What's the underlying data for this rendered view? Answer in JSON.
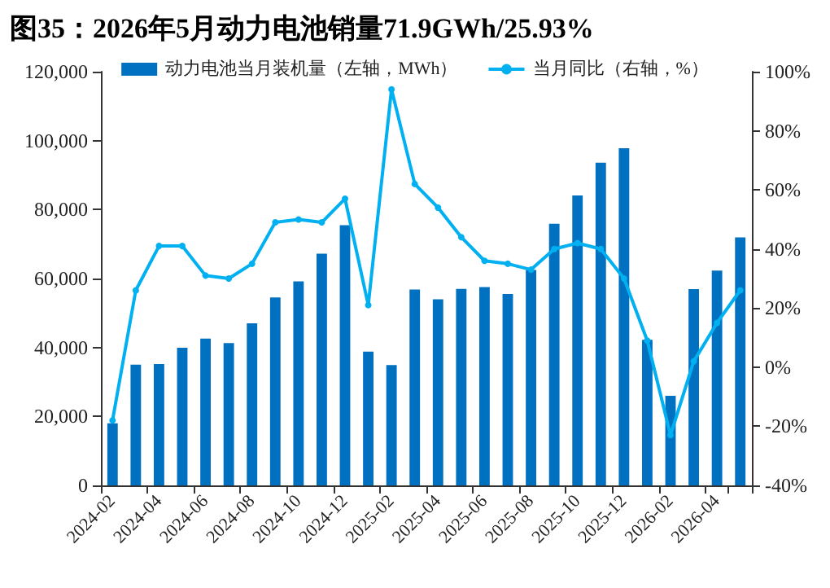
{
  "chart_data": {
    "type": "bar",
    "title": "图35：2026年5月动力电池销量71.9GWh/25.93%",
    "categories": [
      "2024-02",
      null,
      "2024-04",
      null,
      "2024-06",
      null,
      "2024-08",
      null,
      "2024-10",
      null,
      "2024-12",
      null,
      "2025-02",
      null,
      "2025-04",
      null,
      "2025-06",
      null,
      "2025-08",
      null,
      "2025-10",
      null,
      "2025-12",
      null,
      "2026-02",
      null,
      "2026-04",
      null
    ],
    "series": [
      {
        "name": "动力电池当月装机量（左轴，MWh）",
        "color": "#0070c0",
        "values": [
          18000,
          35000,
          35200,
          39900,
          42600,
          41300,
          47000,
          54500,
          59200,
          67200,
          75500,
          38800,
          34900,
          56800,
          54000,
          57000,
          57500,
          55500,
          62500,
          75900,
          84100,
          93600,
          97800,
          42200,
          26000,
          56900,
          62300,
          71900
        ]
      },
      {
        "name": "当月同比（右轴，%）",
        "type": "line",
        "axis": "y2",
        "color": "#00b0f0",
        "marker": "circle",
        "values": [
          -18,
          26,
          41,
          41,
          31,
          30,
          35,
          49,
          50,
          49,
          57,
          21,
          94,
          62,
          54,
          44,
          36,
          35,
          33,
          40,
          42,
          40,
          30,
          9,
          -23,
          2,
          15,
          26
        ]
      }
    ],
    "ylim": [
      0,
      120000
    ],
    "yticks": [
      0,
      {
        "value": 20000,
        "label": "20,000"
      },
      {
        "value": 40000,
        "label": "40,000"
      },
      {
        "value": 60000,
        "label": "60,000"
      },
      {
        "value": 80000,
        "label": "80,000"
      },
      {
        "value": 100000,
        "label": "100,000"
      },
      {
        "value": 120000,
        "label": "120,000"
      }
    ],
    "y2lim": [
      -40,
      100
    ],
    "y2ticks": [
      {
        "value": -40,
        "label": "-40%"
      },
      {
        "value": -20,
        "label": "-20%"
      },
      {
        "value": 0,
        "label": "0%"
      },
      {
        "value": 20,
        "label": "20%"
      },
      {
        "value": 40,
        "label": "40%"
      },
      {
        "value": 60,
        "label": "60%"
      },
      {
        "value": 80,
        "label": "80%"
      },
      {
        "value": 100,
        "label": "100%"
      }
    ],
    "grid": false,
    "legend": "top"
  }
}
